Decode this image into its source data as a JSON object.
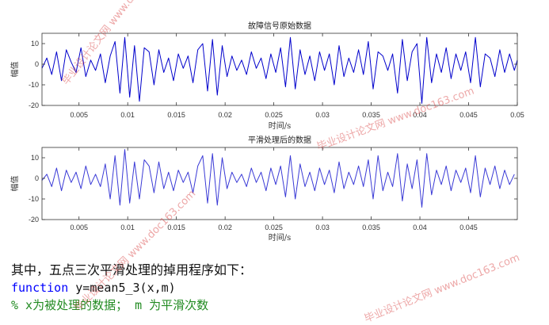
{
  "chart_data": [
    {
      "type": "line",
      "title": "故障信号原始数据",
      "xlabel": "时间/s",
      "ylabel": "幅值",
      "xlim": [
        0.0012,
        0.05
      ],
      "ylim": [
        -20,
        15
      ],
      "xticks": [
        0.005,
        0.01,
        0.015,
        0.02,
        0.025,
        0.03,
        0.035,
        0.04,
        0.045,
        0.05
      ],
      "xtick_labels": [
        "0.005",
        "0.01",
        "0.015",
        "0.02",
        "0.025",
        "0.03",
        "0.035",
        "0.04",
        "0.045",
        "0.05"
      ],
      "yticks": [
        -20,
        -10,
        0,
        10
      ],
      "ytick_labels": [
        "-20",
        "-10",
        "0",
        "10"
      ],
      "grid": false,
      "series": [
        {
          "color": "#0000cc",
          "x": [
            0.0012,
            0.0017,
            0.0022,
            0.0027,
            0.0032,
            0.0037,
            0.0042,
            0.0047,
            0.0052,
            0.0057,
            0.0062,
            0.0067,
            0.0072,
            0.0077,
            0.0082,
            0.0087,
            0.0092,
            0.0097,
            0.0102,
            0.0107,
            0.0112,
            0.0117,
            0.0122,
            0.0127,
            0.0132,
            0.0137,
            0.0142,
            0.0147,
            0.0152,
            0.0157,
            0.0162,
            0.0167,
            0.0172,
            0.0177,
            0.0182,
            0.0187,
            0.0192,
            0.0197,
            0.0202,
            0.0207,
            0.0212,
            0.0217,
            0.0222,
            0.0227,
            0.0232,
            0.0237,
            0.0242,
            0.0247,
            0.0252,
            0.0257,
            0.0262,
            0.0267,
            0.0272,
            0.0277,
            0.0282,
            0.0287,
            0.0292,
            0.0297,
            0.0302,
            0.0307,
            0.0312,
            0.0317,
            0.0322,
            0.0327,
            0.0332,
            0.0337,
            0.0342,
            0.0347,
            0.0352,
            0.0357,
            0.0362,
            0.0367,
            0.0372,
            0.0377,
            0.0382,
            0.0387,
            0.0392,
            0.0397,
            0.0402,
            0.0407,
            0.0412,
            0.0417,
            0.0422,
            0.0427,
            0.0432,
            0.0437,
            0.0442,
            0.0447,
            0.0452,
            0.0457,
            0.0462,
            0.0467,
            0.0472,
            0.0477,
            0.0482,
            0.0487,
            0.0492,
            0.0497,
            0.05
          ],
          "y": [
            -2,
            3,
            -5,
            6,
            -8,
            7,
            1,
            -4,
            8,
            -6,
            2,
            -3,
            5,
            -9,
            4,
            11,
            -14,
            13,
            -16,
            9,
            -18,
            8,
            6,
            -10,
            7,
            -4,
            3,
            -8,
            5,
            -2,
            4,
            -9,
            7,
            10,
            -13,
            12,
            -15,
            9,
            -6,
            4,
            -3,
            2,
            -5,
            6,
            -2,
            3,
            -7,
            5,
            -4,
            8,
            -11,
            13,
            -12,
            7,
            -5,
            4,
            -8,
            6,
            -3,
            5,
            -10,
            9,
            -6,
            3,
            -4,
            7,
            -5,
            11,
            -12,
            6,
            4,
            -3,
            5,
            -14,
            12,
            -8,
            6,
            10,
            -19,
            13,
            -9,
            5,
            -4,
            8,
            -7,
            5,
            -3,
            6,
            -9,
            13,
            -11,
            5,
            3,
            -6,
            7,
            -4,
            5,
            -3,
            2
          ]
        }
      ]
    },
    {
      "type": "line",
      "title": "平滑处理后的数据",
      "xlabel": "时间/s",
      "ylabel": "幅值",
      "xlim": [
        0.0012,
        0.05
      ],
      "ylim": [
        -20,
        15
      ],
      "xticks": [
        0.005,
        0.01,
        0.015,
        0.02,
        0.025,
        0.03,
        0.035,
        0.04,
        0.045
      ],
      "xtick_labels": [
        "0.005",
        "0.01",
        "0.015",
        "0.02",
        "0.025",
        "0.03",
        "0.035",
        "0.04",
        "0.045"
      ],
      "yticks": [
        -20,
        -10,
        0,
        10
      ],
      "ytick_labels": [
        "-20",
        "-10",
        "0",
        "10"
      ],
      "grid": false,
      "series": [
        {
          "color": "#3a3ad6",
          "x": [
            0.0012,
            0.0017,
            0.0022,
            0.0027,
            0.0032,
            0.0037,
            0.0042,
            0.0047,
            0.0052,
            0.0057,
            0.0062,
            0.0067,
            0.0072,
            0.0077,
            0.0082,
            0.0087,
            0.0092,
            0.0097,
            0.0102,
            0.0107,
            0.0112,
            0.0117,
            0.0122,
            0.0127,
            0.0132,
            0.0137,
            0.0142,
            0.0147,
            0.0152,
            0.0157,
            0.0162,
            0.0167,
            0.0172,
            0.0177,
            0.0182,
            0.0187,
            0.0192,
            0.0197,
            0.0202,
            0.0207,
            0.0212,
            0.0217,
            0.0222,
            0.0227,
            0.0232,
            0.0237,
            0.0242,
            0.0247,
            0.0252,
            0.0257,
            0.0262,
            0.0267,
            0.0272,
            0.0277,
            0.0282,
            0.0287,
            0.0292,
            0.0297,
            0.0302,
            0.0307,
            0.0312,
            0.0317,
            0.0322,
            0.0327,
            0.0332,
            0.0337,
            0.0342,
            0.0347,
            0.0352,
            0.0357,
            0.0362,
            0.0367,
            0.0372,
            0.0377,
            0.0382,
            0.0387,
            0.0392,
            0.0397,
            0.0402,
            0.0407,
            0.0412,
            0.0417,
            0.0422,
            0.0427,
            0.0432,
            0.0437,
            0.0442,
            0.0447,
            0.0452,
            0.0457,
            0.0462,
            0.0467,
            0.0472,
            0.0477,
            0.0482,
            0.0487,
            0.0492,
            0.0497
          ],
          "y": [
            -1,
            2,
            -4,
            5,
            -6,
            4,
            -2,
            3,
            -5,
            6,
            -3,
            2,
            -4,
            7,
            -10,
            11,
            -13,
            14,
            -12,
            8,
            -10,
            9,
            6,
            -7,
            8,
            -5,
            3,
            -6,
            4,
            -2,
            3,
            -7,
            6,
            11,
            -12,
            12,
            -13,
            10,
            -5,
            3,
            -2,
            2,
            -4,
            5,
            -2,
            3,
            -6,
            5,
            -3,
            6,
            -9,
            11,
            -10,
            7,
            -4,
            3,
            -6,
            5,
            -3,
            4,
            -7,
            8,
            -5,
            3,
            -3,
            6,
            -4,
            9,
            -10,
            11,
            -6,
            3,
            -4,
            12,
            -11,
            7,
            -5,
            9,
            -14,
            12,
            -8,
            4,
            -3,
            6,
            -6,
            4,
            -2,
            5,
            -7,
            11,
            -9,
            5,
            -3,
            6,
            -5,
            4,
            -3,
            2
          ]
        }
      ]
    }
  ],
  "text": {
    "intro": "其中，五点三次平滑处理的掉用程序如下：",
    "code_keyword": "function",
    "code_rest": " y=mean5_3(x,m)",
    "comment": "% x为被处理的数据； m 为平滑次数"
  },
  "watermarks": [
    "毕业设计论文网 www.doc163.com",
    "毕业设计论文网 www.doc163.com",
    "毕业设计论文网 www.doc163.com",
    "毕业设计论文网 www.doc163.com"
  ]
}
